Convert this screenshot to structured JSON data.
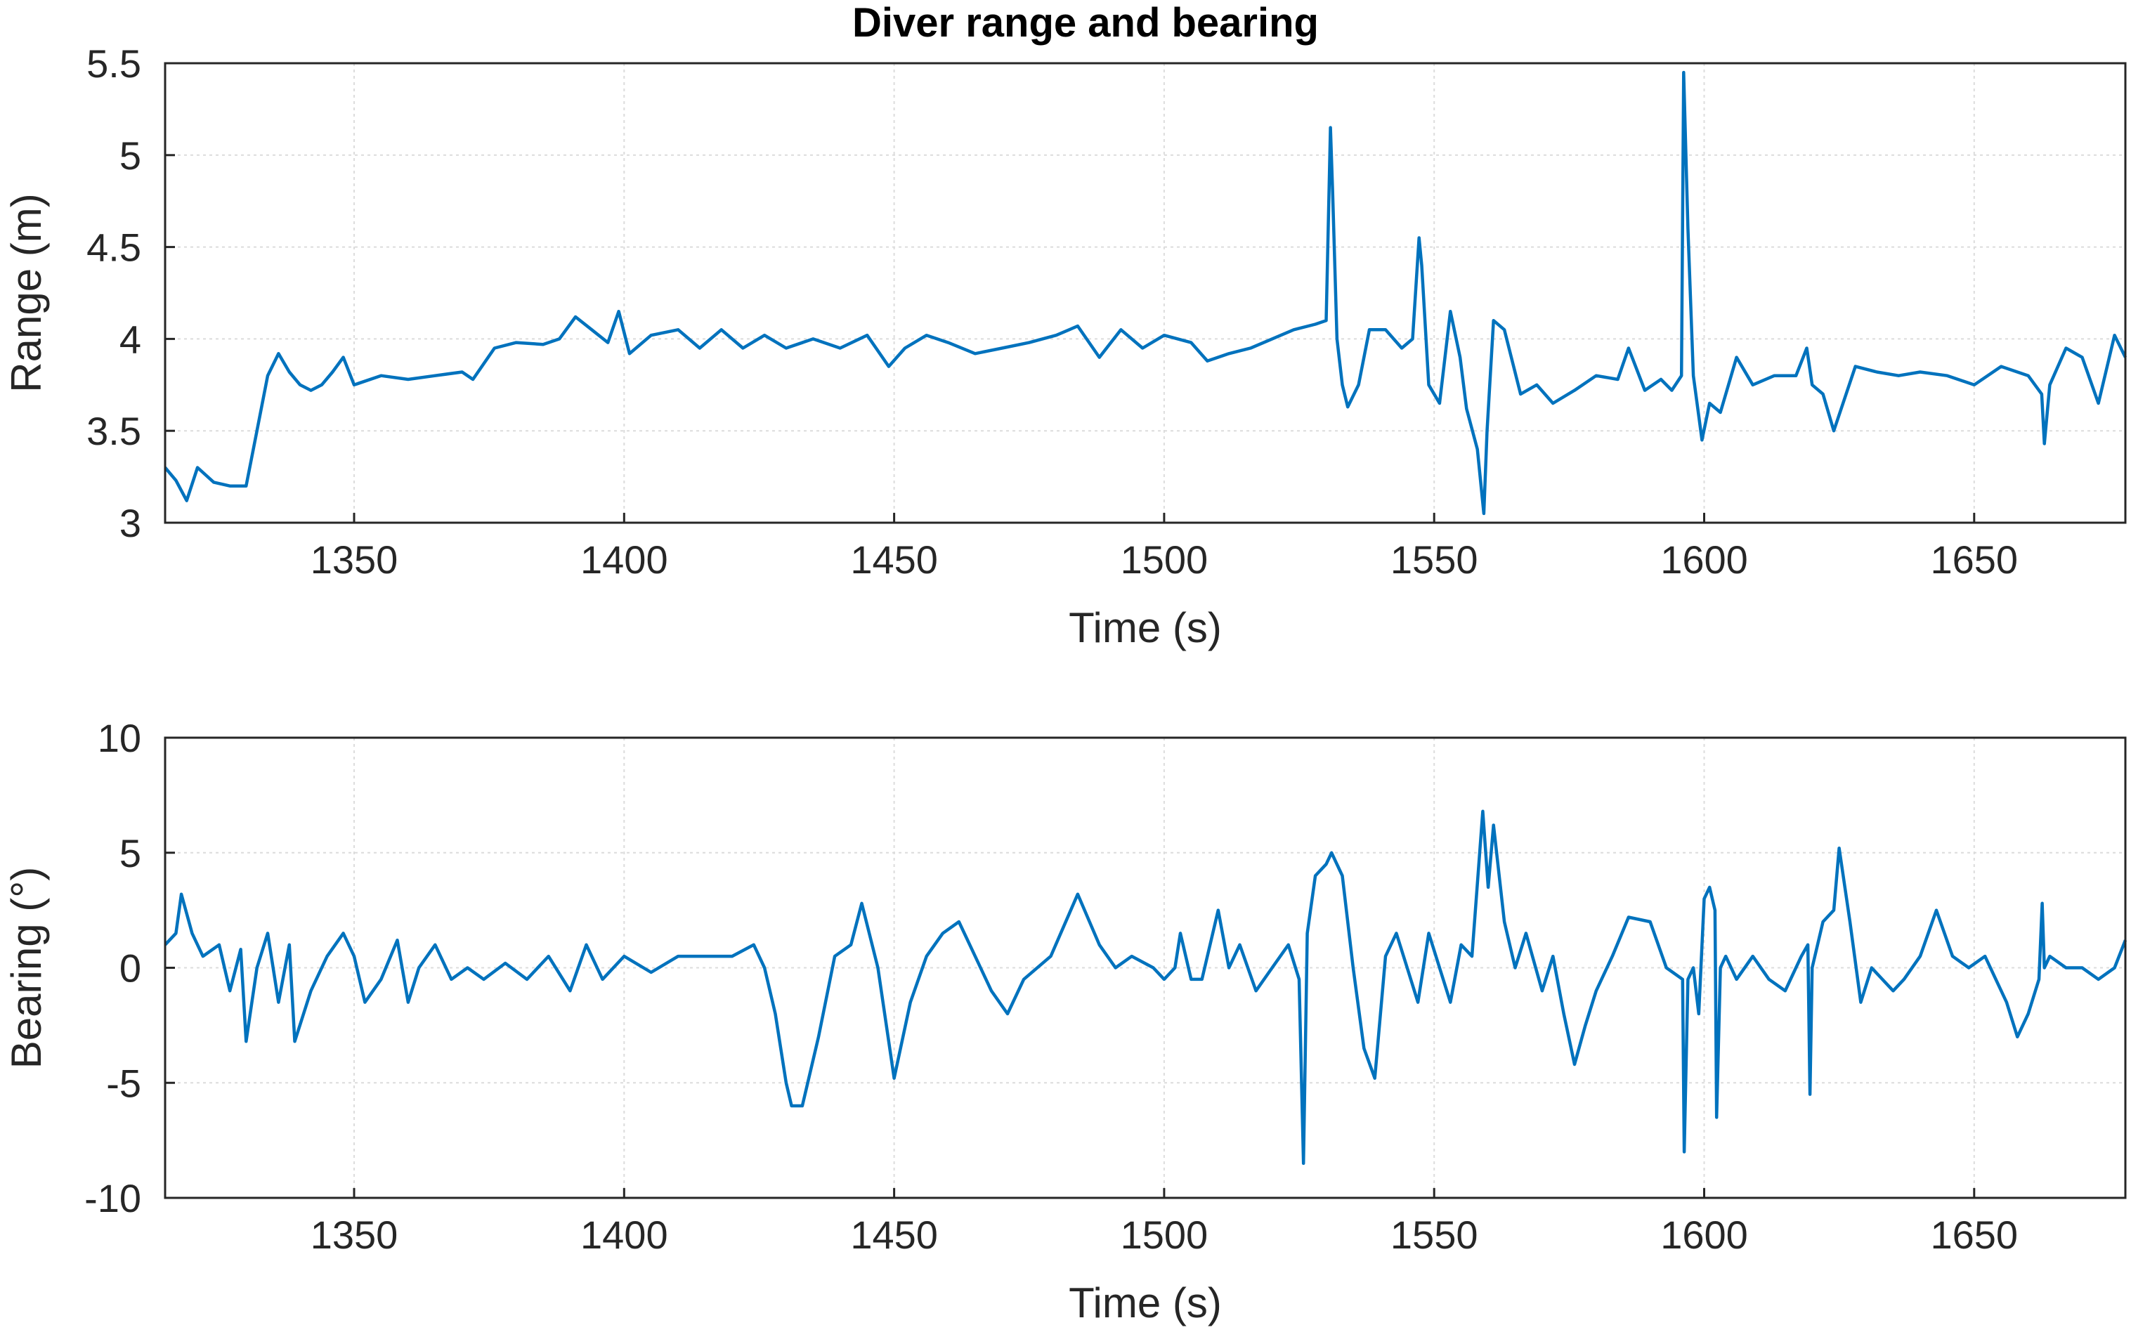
{
  "chart_data": [
    {
      "type": "line",
      "title": "Diver range and bearing",
      "xlabel": "Time (s)",
      "ylabel": "Range (m)",
      "xlim": [
        1315,
        1678
      ],
      "ylim": [
        3,
        5.5
      ],
      "xticks": [
        "1350",
        "1400",
        "1450",
        "1500",
        "1550",
        "1600",
        "1650"
      ],
      "yticks": [
        "3",
        "3.5",
        "4",
        "4.5",
        "5",
        "5.5"
      ],
      "grid": true,
      "color": "#0072BD",
      "series": [
        {
          "x": [
            1315,
            1317,
            1319,
            1321,
            1324,
            1327,
            1330,
            1332,
            1334,
            1336,
            1338,
            1340,
            1342,
            1344,
            1346,
            1348,
            1350,
            1355,
            1360,
            1365,
            1370,
            1372,
            1376,
            1380,
            1385,
            1388,
            1391,
            1394,
            1397,
            1399,
            1401,
            1405,
            1410,
            1414,
            1418,
            1422,
            1426,
            1430,
            1435,
            1440,
            1445,
            1449,
            1452,
            1456,
            1460,
            1465,
            1470,
            1475,
            1480,
            1484,
            1488,
            1492,
            1496,
            1500,
            1505,
            1508,
            1512,
            1516,
            1520,
            1524,
            1528,
            1530,
            1530.8,
            1531.2,
            1532,
            1533,
            1534,
            1536,
            1538,
            1541,
            1544,
            1546,
            1547.2,
            1547.7,
            1549,
            1551,
            1553,
            1554.8,
            1556,
            1558,
            1559.2,
            1559.8,
            1561,
            1563,
            1566,
            1569,
            1572,
            1576,
            1580,
            1584,
            1586,
            1589,
            1592,
            1594,
            1595.8,
            1596.2,
            1597,
            1598,
            1599.6,
            1601,
            1603,
            1606,
            1609,
            1613,
            1617,
            1619,
            1620,
            1622,
            1624,
            1628,
            1632,
            1636,
            1640,
            1645,
            1650,
            1655,
            1660,
            1662.5,
            1663,
            1664,
            1667,
            1670,
            1673,
            1676,
            1678
          ],
          "values": [
            3.3,
            3.23,
            3.12,
            3.3,
            3.22,
            3.2,
            3.2,
            3.5,
            3.8,
            3.92,
            3.82,
            3.75,
            3.72,
            3.75,
            3.82,
            3.9,
            3.75,
            3.8,
            3.78,
            3.8,
            3.82,
            3.78,
            3.95,
            3.98,
            3.97,
            4.0,
            4.12,
            4.05,
            3.98,
            4.15,
            3.92,
            4.02,
            4.05,
            3.95,
            4.05,
            3.95,
            4.02,
            3.95,
            4.0,
            3.95,
            4.02,
            3.85,
            3.95,
            4.02,
            3.98,
            3.92,
            3.95,
            3.98,
            4.02,
            4.07,
            3.9,
            4.05,
            3.95,
            4.02,
            3.98,
            3.88,
            3.92,
            3.95,
            4.0,
            4.05,
            4.08,
            4.1,
            5.15,
            4.8,
            4.0,
            3.75,
            3.63,
            3.75,
            4.05,
            4.05,
            3.95,
            4.0,
            4.55,
            4.4,
            3.75,
            3.65,
            4.15,
            3.9,
            3.62,
            3.4,
            3.05,
            3.5,
            4.1,
            4.05,
            3.7,
            3.75,
            3.65,
            3.72,
            3.8,
            3.78,
            3.95,
            3.72,
            3.78,
            3.72,
            3.8,
            5.45,
            4.6,
            3.8,
            3.45,
            3.65,
            3.6,
            3.9,
            3.75,
            3.8,
            3.8,
            3.95,
            3.75,
            3.7,
            3.5,
            3.85,
            3.82,
            3.8,
            3.82,
            3.8,
            3.75,
            3.85,
            3.8,
            3.7,
            3.43,
            3.75,
            3.95,
            3.9,
            3.65,
            4.02,
            3.9
          ]
        }
      ]
    },
    {
      "type": "line",
      "title": "",
      "xlabel": "Time (s)",
      "ylabel": "Bearing (°)",
      "xlim": [
        1315,
        1678
      ],
      "ylim": [
        -10,
        10
      ],
      "xticks": [
        "1350",
        "1400",
        "1450",
        "1500",
        "1550",
        "1600",
        "1650"
      ],
      "yticks": [
        "-10",
        "-5",
        "0",
        "5",
        "10"
      ],
      "grid": true,
      "color": "#0072BD",
      "series": [
        {
          "x": [
            1315,
            1317,
            1318,
            1320,
            1322,
            1325,
            1327,
            1329,
            1330,
            1332,
            1334,
            1336,
            1338,
            1339,
            1342,
            1345,
            1348,
            1350,
            1352,
            1355,
            1358,
            1360,
            1362,
            1365,
            1368,
            1371,
            1374,
            1378,
            1382,
            1386,
            1390,
            1393,
            1396,
            1400,
            1405,
            1410,
            1415,
            1420,
            1424,
            1426,
            1428,
            1430,
            1431,
            1433,
            1436,
            1439,
            1442,
            1444,
            1447,
            1450,
            1453,
            1456,
            1459,
            1462,
            1465,
            1468,
            1471,
            1474,
            1479,
            1484,
            1488,
            1491,
            1494,
            1498,
            1500,
            1502,
            1503,
            1505,
            1507,
            1510,
            1512,
            1514,
            1517,
            1520,
            1523,
            1525,
            1525.8,
            1526.5,
            1528,
            1530,
            1531,
            1533,
            1535,
            1537,
            1539,
            1541,
            1543,
            1545,
            1547,
            1549,
            1551,
            1553,
            1555,
            1557,
            1559,
            1560,
            1561,
            1563,
            1565,
            1567,
            1570,
            1572,
            1574,
            1576,
            1578,
            1580,
            1583,
            1586,
            1590,
            1593,
            1596,
            1596.3,
            1597,
            1598,
            1599,
            1600,
            1601,
            1602,
            1602.3,
            1603,
            1604,
            1606,
            1609,
            1612,
            1615,
            1618,
            1619.2,
            1619.6,
            1620,
            1622,
            1624,
            1625,
            1627,
            1629,
            1631,
            1633,
            1635,
            1637,
            1640,
            1643,
            1646,
            1649,
            1652,
            1656,
            1658,
            1660,
            1662,
            1662.6,
            1663,
            1664,
            1667,
            1670,
            1673,
            1676,
            1678
          ],
          "values": [
            1.0,
            1.5,
            3.2,
            1.5,
            0.5,
            1.0,
            -1.0,
            0.8,
            -3.2,
            0.0,
            1.5,
            -1.5,
            1.0,
            -3.2,
            -1.0,
            0.5,
            1.5,
            0.5,
            -1.5,
            -0.5,
            1.2,
            -1.5,
            0.0,
            1.0,
            -0.5,
            0.0,
            -0.5,
            0.2,
            -0.5,
            0.5,
            -1.0,
            1.0,
            -0.5,
            0.5,
            -0.2,
            0.5,
            0.5,
            0.5,
            1.0,
            0.0,
            -2.0,
            -5.0,
            -6.0,
            -6.0,
            -3.0,
            0.5,
            1.0,
            2.8,
            0.0,
            -4.8,
            -1.5,
            0.5,
            1.5,
            2.0,
            0.5,
            -1.0,
            -2.0,
            -0.5,
            0.5,
            3.2,
            1.0,
            0.0,
            0.5,
            0.0,
            -0.5,
            0.0,
            1.5,
            -0.5,
            -0.5,
            2.5,
            0.0,
            1.0,
            -1.0,
            0.0,
            1.0,
            -0.5,
            -8.5,
            1.5,
            4.0,
            4.5,
            5.0,
            4.0,
            0.0,
            -3.5,
            -4.8,
            0.5,
            1.5,
            0.0,
            -1.5,
            1.5,
            0.0,
            -1.5,
            1.0,
            0.5,
            6.8,
            3.5,
            6.2,
            2.0,
            0.0,
            1.5,
            -1.0,
            0.5,
            -2.0,
            -4.2,
            -2.5,
            -1.0,
            0.5,
            2.2,
            2.0,
            0.0,
            -0.5,
            -8.0,
            -0.5,
            0.0,
            -2.0,
            3.0,
            3.5,
            2.5,
            -6.5,
            0.0,
            0.5,
            -0.5,
            0.5,
            -0.5,
            -1.0,
            0.5,
            1.0,
            -5.5,
            0.0,
            2.0,
            2.5,
            5.2,
            2.0,
            -1.5,
            0.0,
            -0.5,
            -1.0,
            -0.5,
            0.5,
            2.5,
            0.5,
            0.0,
            0.5,
            -1.5,
            -3.0,
            -2.0,
            -0.5,
            2.8,
            0.0,
            0.5,
            0.0,
            0.0,
            -0.5,
            0.0,
            1.2
          ]
        }
      ]
    }
  ]
}
